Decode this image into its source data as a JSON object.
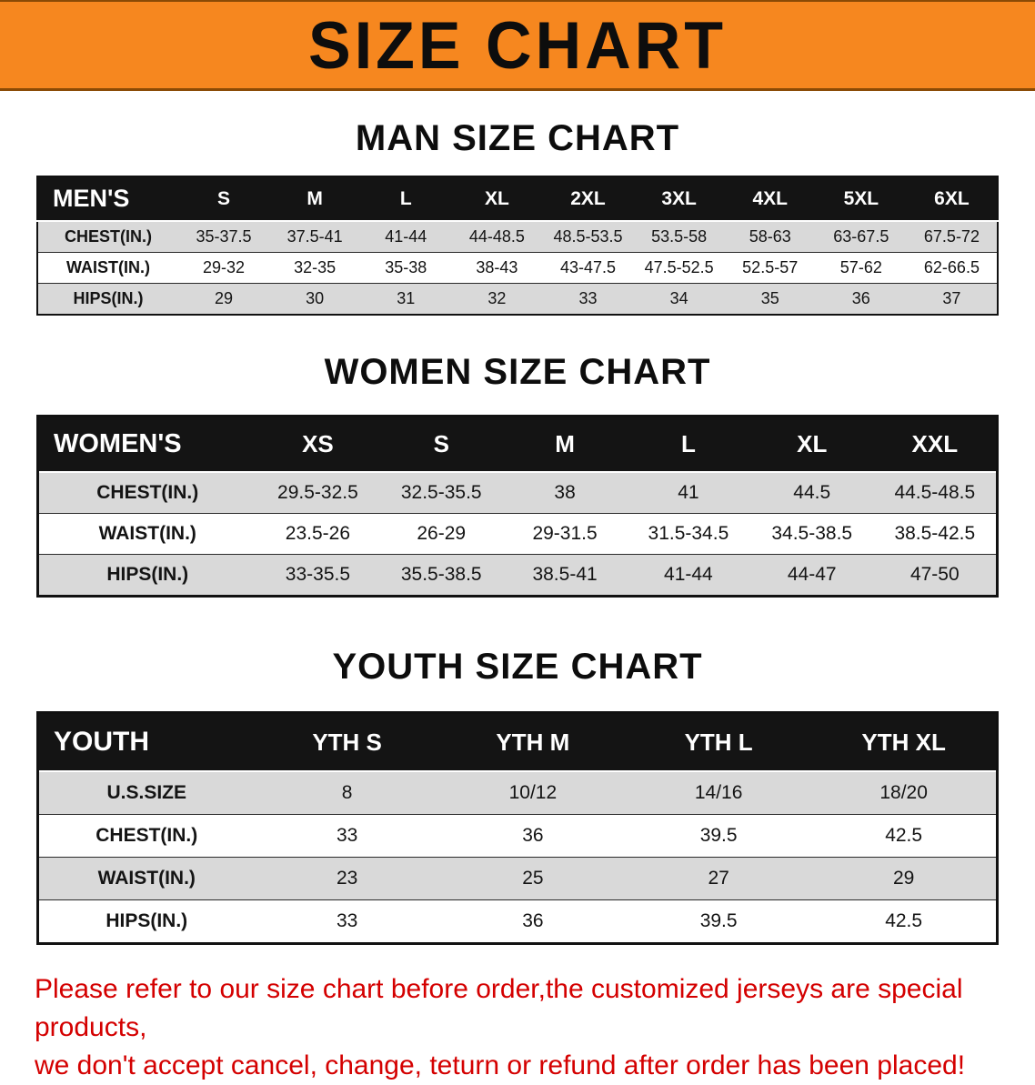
{
  "banner": {
    "title": "SIZE CHART",
    "bg_color": "#F6871F",
    "text_color": "#0D0D0D"
  },
  "sections": {
    "men": {
      "heading": "MAN SIZE CHART",
      "table": {
        "label": "MEN'S",
        "columns": [
          "S",
          "M",
          "L",
          "XL",
          "2XL",
          "3XL",
          "4XL",
          "5XL",
          "6XL"
        ],
        "rows": [
          {
            "label": "CHEST(IN.)",
            "values": [
              "35-37.5",
              "37.5-41",
              "41-44",
              "44-48.5",
              "48.5-53.5",
              "53.5-58",
              "58-63",
              "63-67.5",
              "67.5-72"
            ]
          },
          {
            "label": "WAIST(IN.)",
            "values": [
              "29-32",
              "32-35",
              "35-38",
              "38-43",
              "43-47.5",
              "47.5-52.5",
              "52.5-57",
              "57-62",
              "62-66.5"
            ]
          },
          {
            "label": "HIPS(IN.)",
            "values": [
              "29",
              "30",
              "31",
              "32",
              "33",
              "34",
              "35",
              "36",
              "37"
            ]
          }
        ]
      }
    },
    "women": {
      "heading": "WOMEN SIZE CHART",
      "table": {
        "label": "WOMEN'S",
        "columns": [
          "XS",
          "S",
          "M",
          "L",
          "XL",
          "XXL"
        ],
        "rows": [
          {
            "label": "CHEST(IN.)",
            "values": [
              "29.5-32.5",
              "32.5-35.5",
              "38",
              "41",
              "44.5",
              "44.5-48.5"
            ]
          },
          {
            "label": "WAIST(IN.)",
            "values": [
              "23.5-26",
              "26-29",
              "29-31.5",
              "31.5-34.5",
              "34.5-38.5",
              "38.5-42.5"
            ]
          },
          {
            "label": "HIPS(IN.)",
            "values": [
              "33-35.5",
              "35.5-38.5",
              "38.5-41",
              "41-44",
              "44-47",
              "47-50"
            ]
          }
        ]
      }
    },
    "youth": {
      "heading": "YOUTH SIZE CHART",
      "table": {
        "label": "YOUTH",
        "columns": [
          "YTH S",
          "YTH M",
          "YTH L",
          "YTH XL"
        ],
        "rows": [
          {
            "label": "U.S.SIZE",
            "values": [
              "8",
              "10/12",
              "14/16",
              "18/20"
            ]
          },
          {
            "label": "CHEST(IN.)",
            "values": [
              "33",
              "36",
              "39.5",
              "42.5"
            ]
          },
          {
            "label": "WAIST(IN.)",
            "values": [
              "23",
              "25",
              "27",
              "29"
            ]
          },
          {
            "label": "HIPS(IN.)",
            "values": [
              "33",
              "36",
              "39.5",
              "42.5"
            ]
          }
        ]
      }
    }
  },
  "footer": {
    "text_color": "#D40000",
    "lines": [
      "Please refer to our size chart before order,the customized jerseys are special products,",
      "we don't accept cancel, change, teturn or refund after order has been placed!"
    ]
  }
}
